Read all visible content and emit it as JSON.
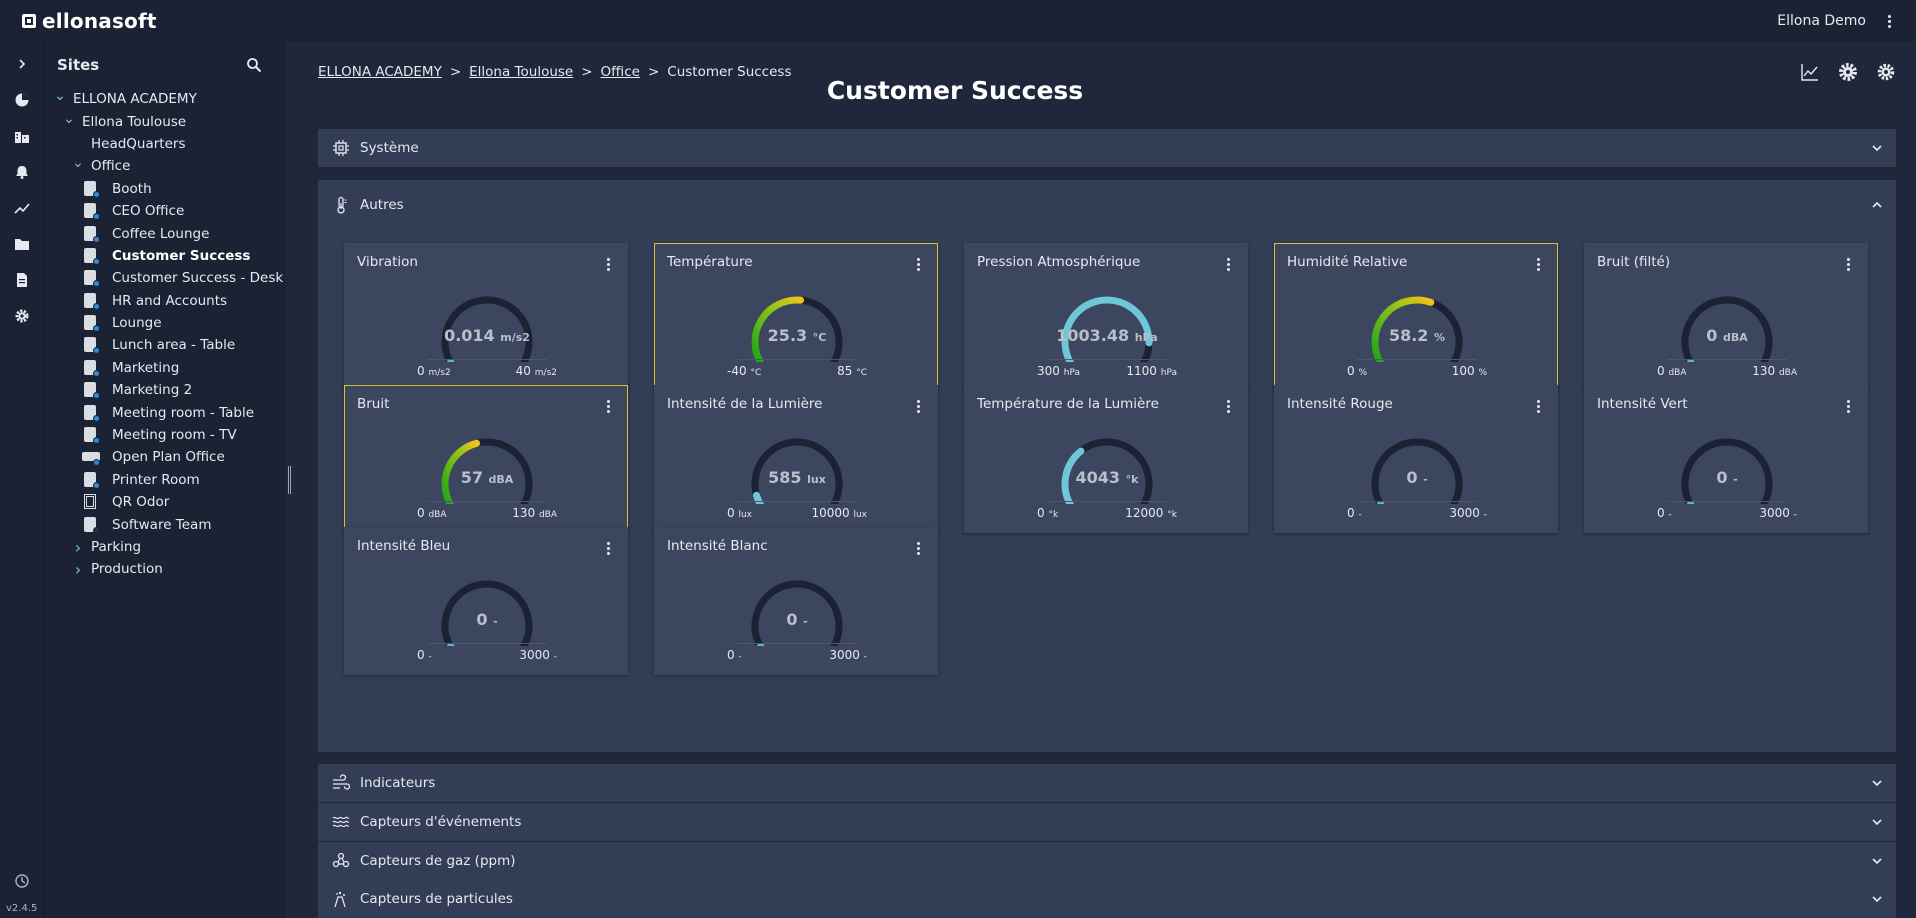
{
  "app": {
    "logo_text": "ellonasoft",
    "user_name": "Ellona Demo",
    "version": "v2.4.5"
  },
  "sidebar": {
    "title": "Sites",
    "tree": [
      {
        "label": "ELLONA ACADEMY",
        "level": 0,
        "caret": "down",
        "icon": "none"
      },
      {
        "label": "Ellona Toulouse",
        "level": 1,
        "caret": "down",
        "icon": "none"
      },
      {
        "label": "HeadQuarters",
        "level": 2,
        "caret": "none",
        "icon": "none"
      },
      {
        "label": "Office",
        "level": 2,
        "caret": "down",
        "icon": "none"
      },
      {
        "label": "Booth",
        "level": 3,
        "caret": "none",
        "icon": "device"
      },
      {
        "label": "CEO Office",
        "level": 3,
        "caret": "none",
        "icon": "device"
      },
      {
        "label": "Coffee Lounge",
        "level": 3,
        "caret": "none",
        "icon": "device"
      },
      {
        "label": "Customer Success",
        "level": 3,
        "caret": "none",
        "icon": "device",
        "selected": true
      },
      {
        "label": "Customer Success - Desk",
        "level": 3,
        "caret": "none",
        "icon": "device"
      },
      {
        "label": "HR and Accounts",
        "level": 3,
        "caret": "none",
        "icon": "device"
      },
      {
        "label": "Lounge",
        "level": 3,
        "caret": "none",
        "icon": "device"
      },
      {
        "label": "Lunch area - Table",
        "level": 3,
        "caret": "none",
        "icon": "device"
      },
      {
        "label": "Marketing",
        "level": 3,
        "caret": "none",
        "icon": "device"
      },
      {
        "label": "Marketing 2",
        "level": 3,
        "caret": "none",
        "icon": "device"
      },
      {
        "label": "Meeting room - Table",
        "level": 3,
        "caret": "none",
        "icon": "device"
      },
      {
        "label": "Meeting room - TV",
        "level": 3,
        "caret": "none",
        "icon": "device"
      },
      {
        "label": "Open Plan Office",
        "level": 3,
        "caret": "none",
        "icon": "wide"
      },
      {
        "label": "Printer Room",
        "level": 3,
        "caret": "none",
        "icon": "device"
      },
      {
        "label": "QR Odor",
        "level": 3,
        "caret": "none",
        "icon": "qr"
      },
      {
        "label": "Software Team",
        "level": 3,
        "caret": "none",
        "icon": "dark"
      },
      {
        "label": "Parking",
        "level": 2,
        "caret": "right",
        "icon": "none"
      },
      {
        "label": "Production",
        "level": 2,
        "caret": "right",
        "icon": "none"
      }
    ]
  },
  "breadcrumb": [
    {
      "label": "ELLONA ACADEMY",
      "link": true
    },
    {
      "label": "Ellona Toulouse",
      "link": true
    },
    {
      "label": "Office",
      "link": true
    },
    {
      "label": "Customer Success",
      "link": false
    }
  ],
  "breadcrumb_separator": ">",
  "page_title": "Customer Success",
  "sections": {
    "systeme": {
      "label": "Système",
      "icon": "chip-icon"
    },
    "autres": {
      "label": "Autres",
      "icon": "thermometer-icon"
    },
    "indicateurs": {
      "label": "Indicateurs",
      "icon": "wind-icon"
    },
    "evenements": {
      "label": "Capteurs d'événements",
      "icon": "waves-icon"
    },
    "gaz": {
      "label": "Capteurs de gaz (ppm)",
      "icon": "molecule-icon"
    },
    "particules": {
      "label": "Capteurs de particules",
      "icon": "particles-icon"
    }
  },
  "colors": {
    "accent": "#6fc6d8",
    "highlight_border": "#d8c13a",
    "gauge_track": "#1b2233",
    "gauge_dot": "#5ab7d4"
  },
  "cards": [
    {
      "title": "Vibration",
      "value": "0.014",
      "unit": "m/s2",
      "min": "0",
      "max": "40",
      "fraction": 0,
      "style": "empty",
      "highlight": false
    },
    {
      "title": "Température",
      "value": "25.3",
      "unit": "°C",
      "min": "-40",
      "max": "85",
      "fraction": 0.52,
      "style": "green",
      "highlight": true
    },
    {
      "title": "Pression Atmosphérique",
      "value": "1003.48",
      "unit": "hPa",
      "min": "300",
      "max": "1100",
      "fraction": 0.88,
      "style": "blue",
      "highlight": false
    },
    {
      "title": "Humidité Relative",
      "value": "58.2",
      "unit": "%",
      "min": "0",
      "max": "100",
      "fraction": 0.58,
      "style": "green",
      "highlight": true
    },
    {
      "title": "Bruit (filté)",
      "value": "0",
      "unit": "dBA",
      "min": "0",
      "max": "130",
      "fraction": 0,
      "style": "empty",
      "highlight": false
    },
    {
      "title": "Bruit",
      "value": "57",
      "unit": "dBA",
      "min": "0",
      "max": "130",
      "fraction": 0.44,
      "style": "green",
      "highlight": true
    },
    {
      "title": "Intensité de la Lumière",
      "value": "585",
      "unit": "lux",
      "min": "0",
      "max": "10000",
      "fraction": 0.06,
      "style": "blue",
      "highlight": false
    },
    {
      "title": "Température de la Lumière",
      "value": "4043",
      "unit": "°k",
      "min": "0",
      "max": "12000",
      "fraction": 0.34,
      "style": "blue",
      "highlight": false
    },
    {
      "title": "Intensité Rouge",
      "value": "0",
      "unit": "-",
      "min": "0",
      "max": "3000",
      "fraction": 0,
      "style": "empty",
      "highlight": false
    },
    {
      "title": "Intensité Vert",
      "value": "0",
      "unit": "-",
      "min": "0",
      "max": "3000",
      "fraction": 0,
      "style": "empty",
      "highlight": false
    },
    {
      "title": "Intensité Bleu",
      "value": "0",
      "unit": "-",
      "min": "0",
      "max": "3000",
      "fraction": 0,
      "style": "empty",
      "highlight": false
    },
    {
      "title": "Intensité Blanc",
      "value": "0",
      "unit": "-",
      "min": "0",
      "max": "3000",
      "fraction": 0,
      "style": "empty",
      "highlight": false
    }
  ]
}
